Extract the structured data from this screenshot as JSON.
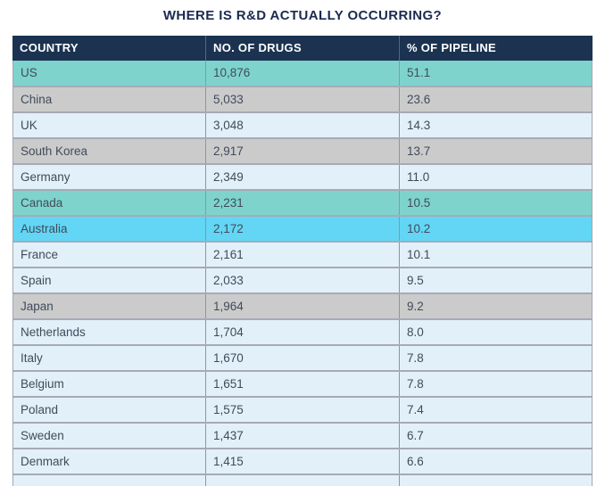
{
  "title": "WHERE IS R&D ACTUALLY OCCURRING?",
  "colors": {
    "title_navy": "#1b2a50",
    "header_bg": "#1b3351",
    "header_text": "#ffffff",
    "row_light_blue": "#e2f0fa",
    "row_gray": "#cbcbcb",
    "highlight_teal": "#7ed4cc",
    "highlight_cyan": "#63d6f5",
    "body_text": "#414b5a"
  },
  "table": {
    "columns": [
      {
        "key": "country",
        "label": "COUNTRY"
      },
      {
        "key": "drugs",
        "label": "NO. OF DRUGS"
      },
      {
        "key": "pipeline",
        "label": "% OF PIPELINE"
      }
    ],
    "rows": [
      {
        "country": "US",
        "drugs": "10,876",
        "pipeline": "51.1",
        "style": "teal"
      },
      {
        "country": "China",
        "drugs": "5,033",
        "pipeline": "23.6",
        "style": "gray"
      },
      {
        "country": "UK",
        "drugs": "3,048",
        "pipeline": "14.3",
        "style": "light"
      },
      {
        "country": "South Korea",
        "drugs": "2,917",
        "pipeline": "13.7",
        "style": "gray"
      },
      {
        "country": "Germany",
        "drugs": "2,349",
        "pipeline": "11.0",
        "style": "light"
      },
      {
        "country": "Canada",
        "drugs": "2,231",
        "pipeline": "10.5",
        "style": "teal"
      },
      {
        "country": "Australia",
        "drugs": "2,172",
        "pipeline": "10.2",
        "style": "cyan"
      },
      {
        "country": "France",
        "drugs": "2,161",
        "pipeline": "10.1",
        "style": "light"
      },
      {
        "country": "Spain",
        "drugs": "2,033",
        "pipeline": "9.5",
        "style": "light"
      },
      {
        "country": "Japan",
        "drugs": "1,964",
        "pipeline": "9.2",
        "style": "gray"
      },
      {
        "country": "Netherlands",
        "drugs": "1,704",
        "pipeline": "8.0",
        "style": "light"
      },
      {
        "country": "Italy",
        "drugs": "1,670",
        "pipeline": "7.8",
        "style": "light"
      },
      {
        "country": "Belgium",
        "drugs": "1,651",
        "pipeline": "7.8",
        "style": "light"
      },
      {
        "country": "Poland",
        "drugs": "1,575",
        "pipeline": "7.4",
        "style": "light"
      },
      {
        "country": "Sweden",
        "drugs": "1,437",
        "pipeline": "6.7",
        "style": "light"
      },
      {
        "country": "Denmark",
        "drugs": "1,415",
        "pipeline": "6.6",
        "style": "light"
      }
    ],
    "clipped_partial_row": {
      "country": "",
      "drugs": "",
      "pipeline": "",
      "style": "light"
    }
  },
  "chart_data": {
    "type": "table",
    "title": "WHERE IS R&D ACTUALLY OCCURRING?",
    "columns": [
      "COUNTRY",
      "NO. OF DRUGS",
      "% OF PIPELINE"
    ],
    "categories": [
      "US",
      "China",
      "UK",
      "South Korea",
      "Germany",
      "Canada",
      "Australia",
      "France",
      "Spain",
      "Japan",
      "Netherlands",
      "Italy",
      "Belgium",
      "Poland",
      "Sweden",
      "Denmark"
    ],
    "series": [
      {
        "name": "NO. OF DRUGS",
        "values": [
          10876,
          5033,
          3048,
          2917,
          2349,
          2231,
          2172,
          2161,
          2033,
          1964,
          1704,
          1670,
          1651,
          1575,
          1437,
          1415
        ]
      },
      {
        "name": "% OF PIPELINE",
        "values": [
          51.1,
          23.6,
          14.3,
          13.7,
          11.0,
          10.5,
          10.2,
          10.1,
          9.5,
          9.2,
          8.0,
          7.8,
          7.8,
          7.4,
          6.7,
          6.6
        ]
      }
    ],
    "highlighted_rows": {
      "teal": [
        "US",
        "Canada"
      ],
      "cyan": [
        "Australia"
      ]
    }
  }
}
